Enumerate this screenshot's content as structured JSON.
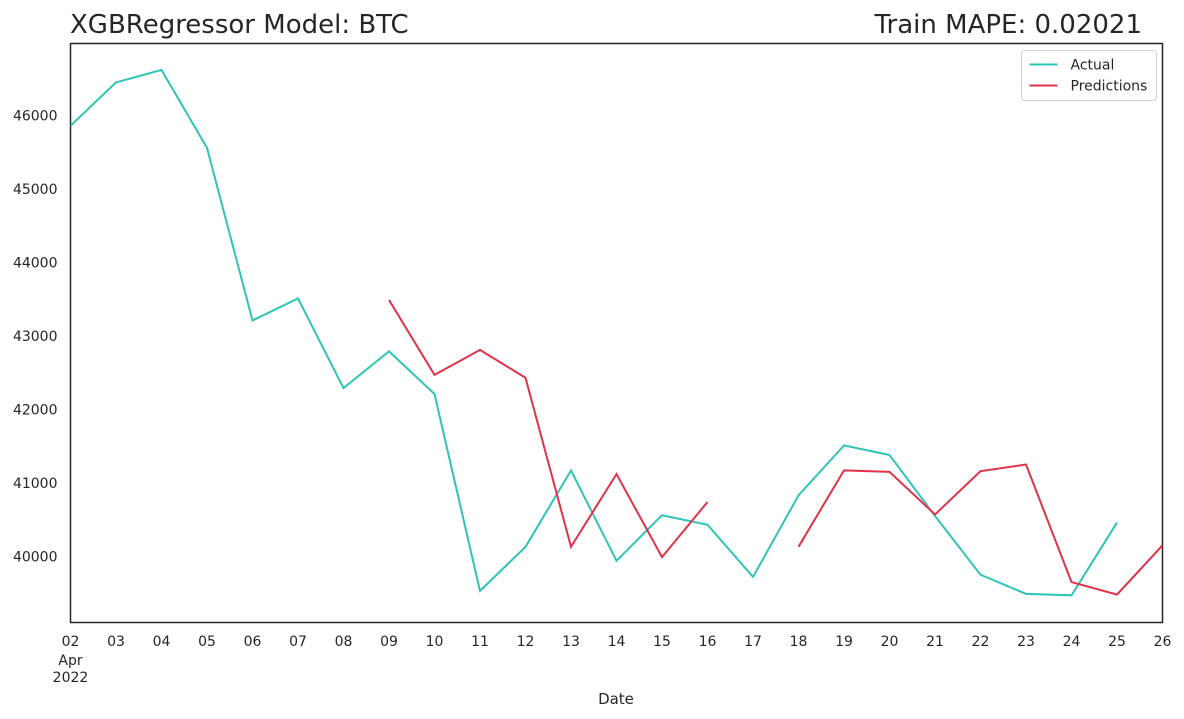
{
  "chart_data": {
    "type": "line",
    "title": "XGBRegressor Model: BTC",
    "title_right": "Train MAPE: 0.02021",
    "xlabel": "Date",
    "ylabel": "",
    "x": [
      "2022-04-02",
      "2022-04-03",
      "2022-04-04",
      "2022-04-05",
      "2022-04-06",
      "2022-04-07",
      "2022-04-08",
      "2022-04-09",
      "2022-04-10",
      "2022-04-11",
      "2022-04-12",
      "2022-04-13",
      "2022-04-14",
      "2022-04-15",
      "2022-04-16",
      "2022-04-17",
      "2022-04-18",
      "2022-04-19",
      "2022-04-20",
      "2022-04-21",
      "2022-04-22",
      "2022-04-23",
      "2022-04-24",
      "2022-04-25",
      "2022-04-26"
    ],
    "x_tick_labels": [
      "02",
      "03",
      "04",
      "05",
      "06",
      "07",
      "08",
      "09",
      "10",
      "11",
      "12",
      "13",
      "14",
      "15",
      "16",
      "17",
      "18",
      "19",
      "20",
      "21",
      "22",
      "23",
      "24",
      "25",
      "26"
    ],
    "x_tick_sublabels": [
      "Apr",
      "2022"
    ],
    "ylim": [
      39100,
      46980
    ],
    "y_ticks": [
      40000,
      41000,
      42000,
      43000,
      44000,
      45000,
      46000
    ],
    "grid": false,
    "legend_position": "top-right",
    "series": [
      {
        "name": "Actual",
        "color": "#2ec4b6",
        "values": [
          45860,
          46450,
          46620,
          45560,
          43210,
          43510,
          42290,
          42790,
          42210,
          39530,
          40130,
          41170,
          39940,
          40560,
          40430,
          39720,
          40830,
          41510,
          41380,
          40550,
          39750,
          39490,
          39470,
          40460,
          null
        ]
      },
      {
        "name": "Predictions",
        "color": "#e0334a",
        "values": [
          null,
          null,
          null,
          null,
          null,
          null,
          null,
          43490,
          42470,
          42810,
          42430,
          40130,
          41120,
          39990,
          40740,
          null,
          40130,
          41170,
          41150,
          40570,
          41160,
          41250,
          39650,
          39480,
          40150
        ]
      }
    ]
  }
}
